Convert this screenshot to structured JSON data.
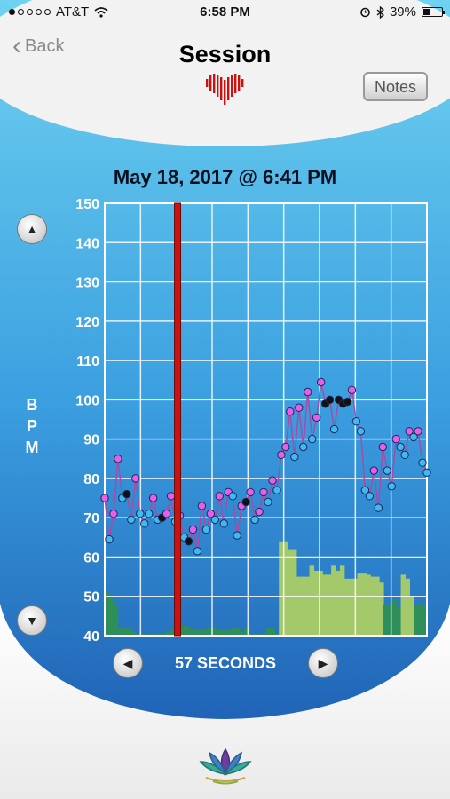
{
  "status_bar": {
    "carrier": "AT&T",
    "time": "6:58 PM",
    "battery": "39%"
  },
  "nav": {
    "back_label": "Back",
    "title": "Session",
    "notes_label": "Notes"
  },
  "session": {
    "datetime": "May 18, 2017 @ 6:41 PM",
    "ylabel": "BPM",
    "duration_label": "57 SECONDS"
  },
  "icons": {
    "heart": "heart-pulse-icon",
    "logo": "lotus-logo"
  },
  "colors": {
    "accent_red": "#cc1111",
    "panel_top": "#6ed2f0",
    "panel_bottom": "#1f62b5",
    "line": "#a64ca6"
  },
  "chart_data": {
    "type": "line",
    "ylabel": "BPM",
    "ylim": [
      40,
      150
    ],
    "yticks": [
      40,
      50,
      60,
      70,
      80,
      90,
      100,
      110,
      120,
      130,
      140,
      150
    ],
    "grid": true,
    "cursor_index": 16,
    "points": [
      {
        "bpm": 75,
        "c": "m"
      },
      {
        "bpm": 64.5,
        "c": "c"
      },
      {
        "bpm": 71,
        "c": "m"
      },
      {
        "bpm": 85,
        "c": "m"
      },
      {
        "bpm": 75,
        "c": "c"
      },
      {
        "bpm": 76,
        "c": "k"
      },
      {
        "bpm": 69.5,
        "c": "c"
      },
      {
        "bpm": 80,
        "c": "m"
      },
      {
        "bpm": 71,
        "c": "c"
      },
      {
        "bpm": 68.5,
        "c": "c"
      },
      {
        "bpm": 71,
        "c": "c"
      },
      {
        "bpm": 75,
        "c": "m"
      },
      {
        "bpm": 69.5,
        "c": "c"
      },
      {
        "bpm": 70,
        "c": "k"
      },
      {
        "bpm": 71,
        "c": "m"
      },
      {
        "bpm": 75.5,
        "c": "m"
      },
      {
        "bpm": 69,
        "c": "c"
      },
      {
        "bpm": 70.5,
        "c": "m"
      },
      {
        "bpm": 65,
        "c": "c"
      },
      {
        "bpm": 64,
        "c": "k"
      },
      {
        "bpm": 67,
        "c": "m"
      },
      {
        "bpm": 61.5,
        "c": "c"
      },
      {
        "bpm": 73,
        "c": "m"
      },
      {
        "bpm": 67,
        "c": "c"
      },
      {
        "bpm": 71,
        "c": "m"
      },
      {
        "bpm": 69.5,
        "c": "c"
      },
      {
        "bpm": 75.5,
        "c": "m"
      },
      {
        "bpm": 68.5,
        "c": "c"
      },
      {
        "bpm": 76.5,
        "c": "m"
      },
      {
        "bpm": 75.5,
        "c": "c"
      },
      {
        "bpm": 65.5,
        "c": "c"
      },
      {
        "bpm": 73,
        "c": "m"
      },
      {
        "bpm": 74,
        "c": "k"
      },
      {
        "bpm": 76.5,
        "c": "m"
      },
      {
        "bpm": 69.5,
        "c": "c"
      },
      {
        "bpm": 71.5,
        "c": "m"
      },
      {
        "bpm": 76.5,
        "c": "m"
      },
      {
        "bpm": 74,
        "c": "c"
      },
      {
        "bpm": 79.5,
        "c": "m"
      },
      {
        "bpm": 77,
        "c": "c"
      },
      {
        "bpm": 86,
        "c": "m"
      },
      {
        "bpm": 88,
        "c": "m"
      },
      {
        "bpm": 97,
        "c": "m"
      },
      {
        "bpm": 85.5,
        "c": "c"
      },
      {
        "bpm": 98,
        "c": "m"
      },
      {
        "bpm": 88,
        "c": "c"
      },
      {
        "bpm": 102,
        "c": "m"
      },
      {
        "bpm": 90,
        "c": "c"
      },
      {
        "bpm": 95.5,
        "c": "m"
      },
      {
        "bpm": 104.5,
        "c": "m"
      },
      {
        "bpm": 99,
        "c": "k"
      },
      {
        "bpm": 100,
        "c": "k"
      },
      {
        "bpm": 92.5,
        "c": "c"
      },
      {
        "bpm": 100,
        "c": "k"
      },
      {
        "bpm": 99,
        "c": "k"
      },
      {
        "bpm": 99.5,
        "c": "k"
      },
      {
        "bpm": 102.5,
        "c": "m"
      },
      {
        "bpm": 94.5,
        "c": "c"
      },
      {
        "bpm": 92,
        "c": "c"
      },
      {
        "bpm": 77,
        "c": "c"
      },
      {
        "bpm": 75.5,
        "c": "c"
      },
      {
        "bpm": 82,
        "c": "m"
      },
      {
        "bpm": 72.5,
        "c": "c"
      },
      {
        "bpm": 88,
        "c": "m"
      },
      {
        "bpm": 82,
        "c": "c"
      },
      {
        "bpm": 78,
        "c": "c"
      },
      {
        "bpm": 90,
        "c": "m"
      },
      {
        "bpm": 88,
        "c": "c"
      },
      {
        "bpm": 86,
        "c": "c"
      },
      {
        "bpm": 92,
        "c": "m"
      },
      {
        "bpm": 90.5,
        "c": "c"
      },
      {
        "bpm": 92,
        "c": "m"
      },
      {
        "bpm": 84,
        "c": "c"
      },
      {
        "bpm": 81.5,
        "c": "c"
      }
    ],
    "coherence_bars": [
      {
        "v": 51,
        "c": "g"
      },
      {
        "v": 50,
        "c": "g"
      },
      {
        "v": 48,
        "c": "g"
      },
      {
        "v": 42,
        "c": "g"
      },
      {
        "v": 42,
        "c": "g"
      },
      {
        "v": 42,
        "c": "g"
      },
      {
        "v": 41,
        "c": "g"
      },
      {
        "v": 40.5,
        "c": "g"
      },
      {
        "v": 40.5,
        "c": "g"
      },
      {
        "v": 40.5,
        "c": "g"
      },
      {
        "v": 40.5,
        "c": "g"
      },
      {
        "v": 40.5,
        "c": "g"
      },
      {
        "v": 40.5,
        "c": "g"
      },
      {
        "v": 40.5,
        "c": "g"
      },
      {
        "v": 41,
        "c": "g"
      },
      {
        "v": 41.5,
        "c": "g"
      },
      {
        "v": 42.5,
        "c": "g"
      },
      {
        "v": 42.5,
        "c": "g"
      },
      {
        "v": 42.5,
        "c": "g"
      },
      {
        "v": 42,
        "c": "g"
      },
      {
        "v": 41.5,
        "c": "g"
      },
      {
        "v": 41.5,
        "c": "g"
      },
      {
        "v": 41.5,
        "c": "g"
      },
      {
        "v": 42,
        "c": "g"
      },
      {
        "v": 42,
        "c": "g"
      },
      {
        "v": 42,
        "c": "g"
      },
      {
        "v": 41.5,
        "c": "g"
      },
      {
        "v": 41.5,
        "c": "g"
      },
      {
        "v": 41.5,
        "c": "g"
      },
      {
        "v": 42,
        "c": "g"
      },
      {
        "v": 42,
        "c": "g"
      },
      {
        "v": 41,
        "c": "g"
      },
      {
        "v": 42,
        "c": "g"
      },
      {
        "v": 40.5,
        "c": "g"
      },
      {
        "v": 40.5,
        "c": "g"
      },
      {
        "v": 40.5,
        "c": "g"
      },
      {
        "v": 40.5,
        "c": "g"
      },
      {
        "v": 42,
        "c": "g"
      },
      {
        "v": 42,
        "c": "g"
      },
      {
        "v": 40.5,
        "c": "g"
      },
      {
        "v": 64,
        "c": "y"
      },
      {
        "v": 64,
        "c": "y"
      },
      {
        "v": 62,
        "c": "y"
      },
      {
        "v": 62,
        "c": "y"
      },
      {
        "v": 55,
        "c": "y"
      },
      {
        "v": 55,
        "c": "y"
      },
      {
        "v": 55,
        "c": "y"
      },
      {
        "v": 58,
        "c": "y"
      },
      {
        "v": 56.5,
        "c": "y"
      },
      {
        "v": 56.5,
        "c": "y"
      },
      {
        "v": 55.5,
        "c": "y"
      },
      {
        "v": 55.5,
        "c": "y"
      },
      {
        "v": 58,
        "c": "y"
      },
      {
        "v": 56.5,
        "c": "y"
      },
      {
        "v": 58,
        "c": "y"
      },
      {
        "v": 54.5,
        "c": "y"
      },
      {
        "v": 54.5,
        "c": "y"
      },
      {
        "v": 54.5,
        "c": "y"
      },
      {
        "v": 56,
        "c": "y"
      },
      {
        "v": 56,
        "c": "y"
      },
      {
        "v": 55.5,
        "c": "y"
      },
      {
        "v": 55,
        "c": "y"
      },
      {
        "v": 55,
        "c": "y"
      },
      {
        "v": 53.5,
        "c": "y"
      },
      {
        "v": 48,
        "c": "g"
      },
      {
        "v": 48,
        "c": "g"
      },
      {
        "v": 49,
        "c": "g"
      },
      {
        "v": 47,
        "c": "g"
      },
      {
        "v": 55.5,
        "c": "y"
      },
      {
        "v": 54.5,
        "c": "y"
      },
      {
        "v": 50,
        "c": "y"
      },
      {
        "v": 48,
        "c": "g"
      },
      {
        "v": 48,
        "c": "g"
      },
      {
        "v": 48,
        "c": "g"
      }
    ]
  }
}
